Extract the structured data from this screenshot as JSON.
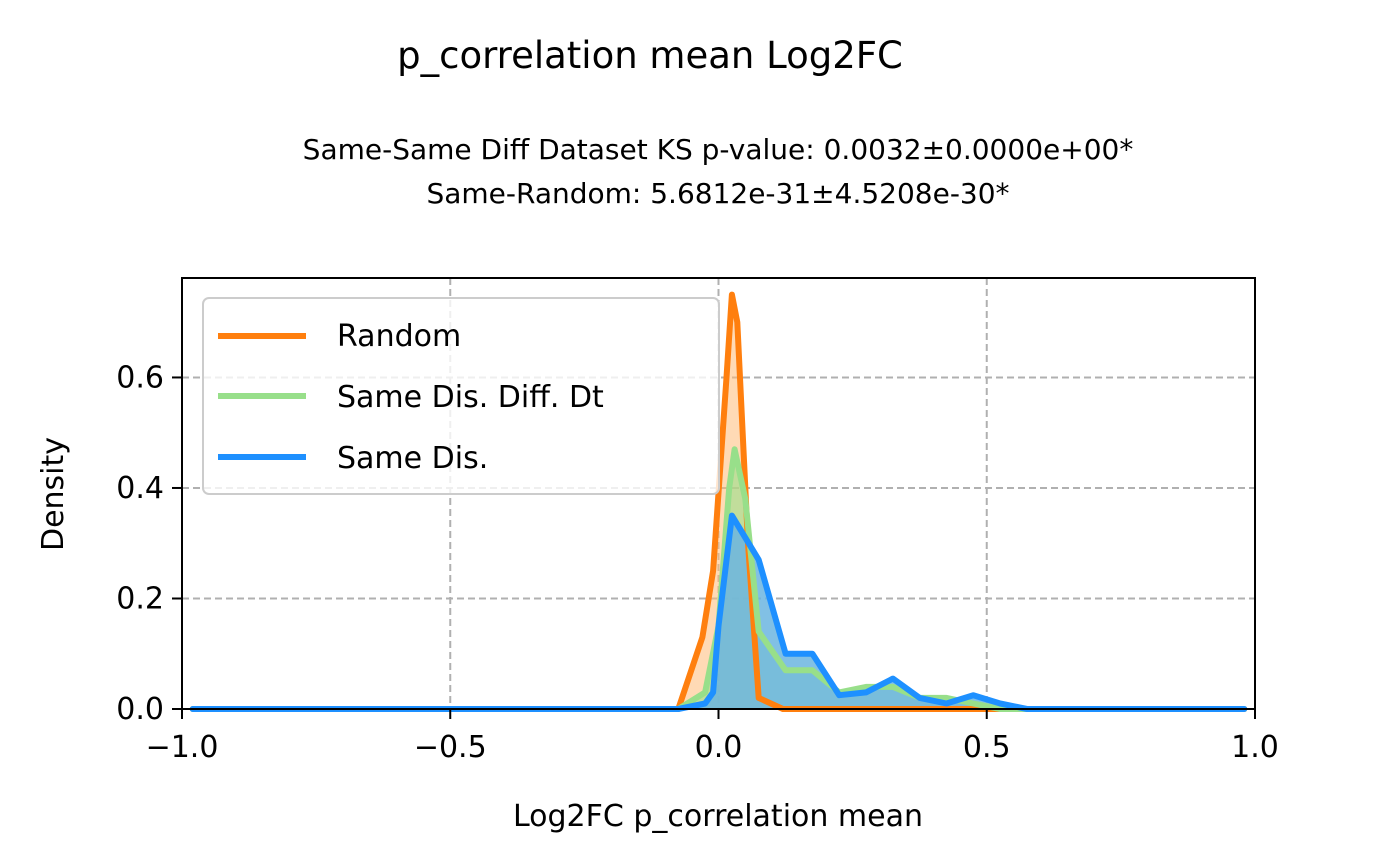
{
  "chart_data": {
    "type": "line",
    "title": "p_correlation mean Log2FC",
    "subtitle_lines": [
      "Same-Same Diff Dataset  KS p-value: 0.0032±0.0000e+00*",
      "Same-Random: 5.6812e-31±4.5208e-30*"
    ],
    "xlabel": "Log2FC p_correlation mean",
    "ylabel": "Density",
    "xlim": [
      -1.0,
      1.0
    ],
    "ylim": [
      0.0,
      0.78
    ],
    "xticks": [
      -1.0,
      -0.5,
      0.0,
      0.5,
      1.0
    ],
    "xtick_labels": [
      "−1.0",
      "−0.5",
      "0.0",
      "0.5",
      "1.0"
    ],
    "yticks": [
      0.0,
      0.2,
      0.4,
      0.6
    ],
    "ytick_labels": [
      "0.0",
      "0.2",
      "0.4",
      "0.6"
    ],
    "grid": true,
    "legend_position": "upper-left",
    "series": [
      {
        "name": "Random",
        "color": "#ff7f0e",
        "fill_color": "#ffbb78",
        "x": [
          -0.98,
          -0.075,
          -0.03,
          -0.01,
          0.015,
          0.025,
          0.035,
          0.055,
          0.075,
          0.12,
          0.2,
          0.3,
          0.4,
          0.5,
          0.6,
          0.75,
          0.98
        ],
        "y": [
          0.0,
          0.0,
          0.13,
          0.25,
          0.6,
          0.75,
          0.7,
          0.3,
          0.02,
          0.0,
          0.0,
          0.0,
          0.0,
          0.0,
          0.0,
          0.0,
          0.0
        ]
      },
      {
        "name": "Same Dis. Diff. Dt",
        "color": "#98df8a",
        "fill_color": "#98df8a",
        "x": [
          -0.98,
          -0.075,
          -0.025,
          0.0,
          0.02,
          0.03,
          0.05,
          0.075,
          0.125,
          0.175,
          0.225,
          0.275,
          0.325,
          0.375,
          0.425,
          0.475,
          0.525,
          0.575,
          0.98
        ],
        "y": [
          0.0,
          0.0,
          0.03,
          0.15,
          0.4,
          0.47,
          0.38,
          0.14,
          0.07,
          0.07,
          0.03,
          0.04,
          0.04,
          0.02,
          0.02,
          0.01,
          0.0,
          0.0,
          0.0
        ]
      },
      {
        "name": "Same Dis.",
        "color": "#1e90ff",
        "fill_color": "#6bb5e0",
        "x": [
          -0.98,
          -0.075,
          -0.025,
          -0.01,
          0.0,
          0.025,
          0.075,
          0.125,
          0.175,
          0.225,
          0.275,
          0.325,
          0.375,
          0.425,
          0.475,
          0.525,
          0.575,
          0.98
        ],
        "y": [
          0.0,
          0.0,
          0.01,
          0.03,
          0.15,
          0.35,
          0.27,
          0.1,
          0.1,
          0.025,
          0.03,
          0.055,
          0.02,
          0.01,
          0.025,
          0.01,
          0.0,
          0.0
        ]
      }
    ]
  }
}
